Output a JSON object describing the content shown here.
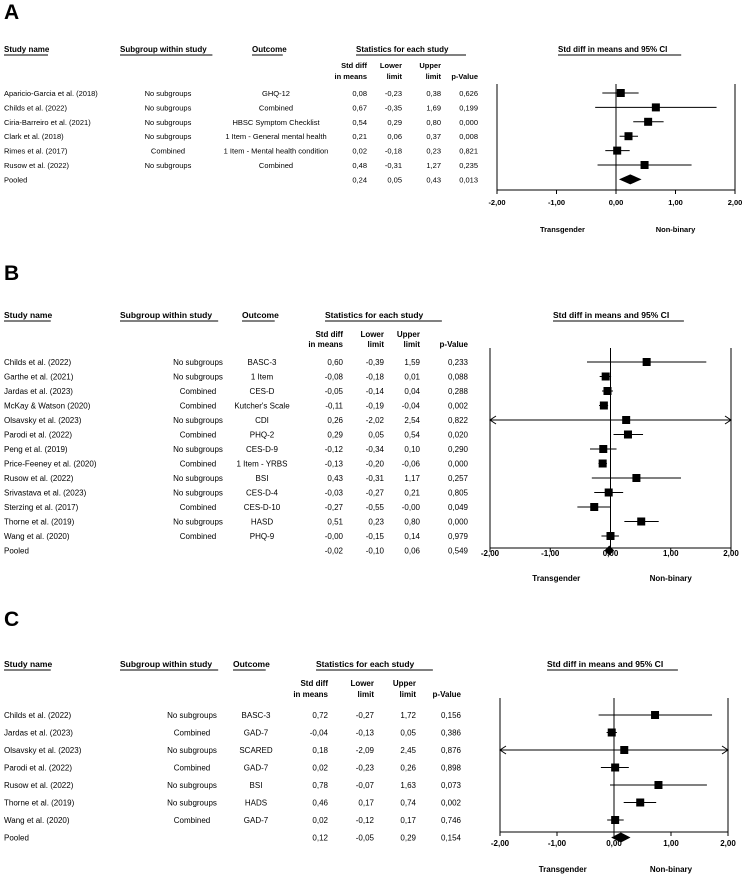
{
  "chart_data": [
    {
      "type": "forest",
      "panel": "A",
      "headers": {
        "study": "Study name",
        "subgroup": "Subgroup within study",
        "outcome": "Outcome",
        "stats": "Statistics for each study",
        "plot": "Std diff in means and 95% CI",
        "smd": [
          "Std diff",
          "in means"
        ],
        "lower": [
          "Lower",
          "limit"
        ],
        "upper": [
          "Upper",
          "limit"
        ],
        "p": [
          "",
          "p-Value"
        ]
      },
      "rows": [
        {
          "study": "Aparicio-Garcia et al. (2018)",
          "subgroup": "No subgroups",
          "outcome": "GHQ-12",
          "smd": "0,08",
          "lower": "-0,23",
          "upper": "0,38",
          "p": "0,626"
        },
        {
          "study": "Childs et al. (2022)",
          "subgroup": "No subgroups",
          "outcome": "Combined",
          "smd": "0,67",
          "lower": "-0,35",
          "upper": "1,69",
          "p": "0,199"
        },
        {
          "study": "Ciria-Barreiro et al. (2021)",
          "subgroup": "No subgroups",
          "outcome": "HBSC Symptom Checklist",
          "smd": "0,54",
          "lower": "0,29",
          "upper": "0,80",
          "p": "0,000"
        },
        {
          "study": "Clark et al. (2018)",
          "subgroup": "No subgroups",
          "outcome": "1 Item - General mental health",
          "smd": "0,21",
          "lower": "0,06",
          "upper": "0,37",
          "p": "0,008"
        },
        {
          "study": "Rimes et al. (2017)",
          "subgroup": "Combined",
          "outcome": "1 Item - Mental health condition",
          "smd": "0,02",
          "lower": "-0,18",
          "upper": "0,23",
          "p": "0,821"
        },
        {
          "study": "Rusow et al. (2022)",
          "subgroup": "No subgroups",
          "outcome": "Combined",
          "smd": "0,48",
          "lower": "-0,31",
          "upper": "1,27",
          "p": "0,235"
        }
      ],
      "pooled": {
        "label": "Pooled",
        "smd": "0,24",
        "lower": "0,05",
        "upper": "0,43",
        "p": "0,013"
      },
      "xlim": [
        -2,
        2
      ],
      "ticks": [
        "-2,00",
        "-1,00",
        "0,00",
        "1,00",
        "2,00"
      ],
      "tick_values": [
        -2,
        -1,
        0,
        1,
        2
      ],
      "favours_left": "Transgender",
      "favours_right": "Non-binary"
    },
    {
      "type": "forest",
      "panel": "B",
      "headers": {
        "study": "Study name",
        "subgroup": "Subgroup within study",
        "outcome": "Outcome",
        "stats": "Statistics for each study",
        "plot": "Std diff in means and 95% CI",
        "smd": [
          "Std diff",
          "in means"
        ],
        "lower": [
          "Lower",
          "limit"
        ],
        "upper": [
          "Upper",
          "limit"
        ],
        "p": [
          "",
          "p-Value"
        ]
      },
      "rows": [
        {
          "study": "Childs et al. (2022)",
          "subgroup": "No subgroups",
          "outcome": "BASC-3",
          "smd": "0,60",
          "lower": "-0,39",
          "upper": "1,59",
          "p": "0,233"
        },
        {
          "study": "Garthe et al. (2021)",
          "subgroup": "No subgroups",
          "outcome": "1 Item",
          "smd": "-0,08",
          "lower": "-0,18",
          "upper": "0,01",
          "p": "0,088"
        },
        {
          "study": "Jardas et al. (2023)",
          "subgroup": "Combined",
          "outcome": "CES-D",
          "smd": "-0,05",
          "lower": "-0,14",
          "upper": "0,04",
          "p": "0,288"
        },
        {
          "study": "McKay & Watson (2020)",
          "subgroup": "Combined",
          "outcome": "Kutcher's Scale",
          "smd": "-0,11",
          "lower": "-0,19",
          "upper": "-0,04",
          "p": "0,002"
        },
        {
          "study": "Olsavsky et al. (2023)",
          "subgroup": "No subgroups",
          "outcome": "CDI",
          "smd": "0,26",
          "lower": "-2,02",
          "upper": "2,54",
          "p": "0,822"
        },
        {
          "study": "Parodi et al. (2022)",
          "subgroup": "Combined",
          "outcome": "PHQ-2",
          "smd": "0,29",
          "lower": "0,05",
          "upper": "0,54",
          "p": "0,020"
        },
        {
          "study": "Peng et al. (2019)",
          "subgroup": "No subgroups",
          "outcome": "CES-D-9",
          "smd": "-0,12",
          "lower": "-0,34",
          "upper": "0,10",
          "p": "0,290"
        },
        {
          "study": "Price-Feeney et al. (2020)",
          "subgroup": "Combined",
          "outcome": "1 Item - YRBS",
          "smd": "-0,13",
          "lower": "-0,20",
          "upper": "-0,06",
          "p": "0,000"
        },
        {
          "study": "Rusow et al. (2022)",
          "subgroup": "No subgroups",
          "outcome": "BSI",
          "smd": "0,43",
          "lower": "-0,31",
          "upper": "1,17",
          "p": "0,257"
        },
        {
          "study": "Srivastava et al. (2023)",
          "subgroup": "No subgroups",
          "outcome": "CES-D-4",
          "smd": "-0,03",
          "lower": "-0,27",
          "upper": "0,21",
          "p": "0,805"
        },
        {
          "study": "Sterzing et al. (2017)",
          "subgroup": "Combined",
          "outcome": "CES-D-10",
          "smd": "-0,27",
          "lower": "-0,55",
          "upper": "-0,00",
          "p": "0,049"
        },
        {
          "study": "Thorne et al. (2019)",
          "subgroup": "No subgroups",
          "outcome": "HASD",
          "smd": "0,51",
          "lower": "0,23",
          "upper": "0,80",
          "p": "0,000"
        },
        {
          "study": "Wang et al. (2020)",
          "subgroup": "Combined",
          "outcome": "PHQ-9",
          "smd": "-0,00",
          "lower": "-0,15",
          "upper": "0,14",
          "p": "0,979"
        }
      ],
      "pooled": {
        "label": "Pooled",
        "smd": "-0,02",
        "lower": "-0,10",
        "upper": "0,06",
        "p": "0,549"
      },
      "xlim": [
        -2,
        2
      ],
      "ticks": [
        "-2,00",
        "-1,00",
        "0,00",
        "1,00",
        "2,00"
      ],
      "tick_values": [
        -2,
        -1,
        0,
        1,
        2
      ],
      "favours_left": "Transgender",
      "favours_right": "Non-binary"
    },
    {
      "type": "forest",
      "panel": "C",
      "headers": {
        "study": "Study name",
        "subgroup": "Subgroup within study",
        "outcome": "Outcome",
        "stats": "Statistics for each study",
        "plot": "Std diff in means and 95% CI",
        "smd": [
          "Std diff",
          "in means"
        ],
        "lower": [
          "Lower",
          "limit"
        ],
        "upper": [
          "Upper",
          "limit"
        ],
        "p": [
          "",
          "p-Value"
        ]
      },
      "rows": [
        {
          "study": "Childs et al. (2022)",
          "subgroup": "No subgroups",
          "outcome": "BASC-3",
          "smd": "0,72",
          "lower": "-0,27",
          "upper": "1,72",
          "p": "0,156"
        },
        {
          "study": "Jardas et al. (2023)",
          "subgroup": "Combined",
          "outcome": "GAD-7",
          "smd": "-0,04",
          "lower": "-0,13",
          "upper": "0,05",
          "p": "0,386"
        },
        {
          "study": "Olsavsky et al. (2023)",
          "subgroup": "No subgroups",
          "outcome": "SCARED",
          "smd": "0,18",
          "lower": "-2,09",
          "upper": "2,45",
          "p": "0,876"
        },
        {
          "study": "Parodi et al. (2022)",
          "subgroup": "Combined",
          "outcome": "GAD-7",
          "smd": "0,02",
          "lower": "-0,23",
          "upper": "0,26",
          "p": "0,898"
        },
        {
          "study": "Rusow et al. (2022)",
          "subgroup": "No subgroups",
          "outcome": "BSI",
          "smd": "0,78",
          "lower": "-0,07",
          "upper": "1,63",
          "p": "0,073"
        },
        {
          "study": "Thorne et al. (2019)",
          "subgroup": "No subgroups",
          "outcome": "HADS",
          "smd": "0,46",
          "lower": "0,17",
          "upper": "0,74",
          "p": "0,002"
        },
        {
          "study": "Wang et al. (2020)",
          "subgroup": "Combined",
          "outcome": "GAD-7",
          "smd": "0,02",
          "lower": "-0,12",
          "upper": "0,17",
          "p": "0,746"
        }
      ],
      "pooled": {
        "label": "Pooled",
        "smd": "0,12",
        "lower": "-0,05",
        "upper": "0,29",
        "p": "0,154"
      },
      "xlim": [
        -2,
        2
      ],
      "ticks": [
        "-2,00",
        "-1,00",
        "0,00",
        "1,00",
        "2,00"
      ],
      "tick_values": [
        -2,
        -1,
        0,
        1,
        2
      ],
      "favours_left": "Transgender",
      "favours_right": "Non-binary"
    }
  ]
}
